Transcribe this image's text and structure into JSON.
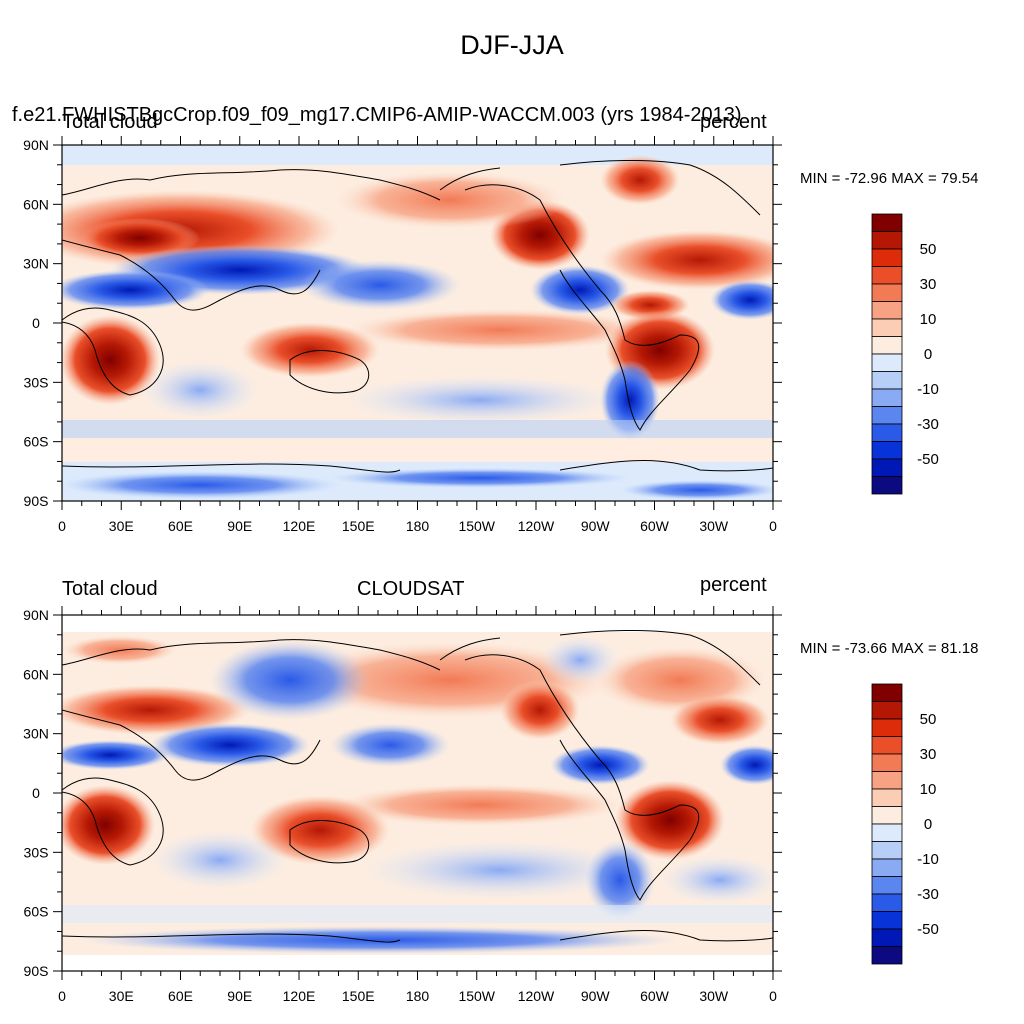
{
  "title": "DJF-JJA",
  "colorbar": {
    "colors": [
      "#0c0a80",
      "#0019b6",
      "#0833d8",
      "#2a5ae8",
      "#5b85ef",
      "#8aaaf3",
      "#b7cef7",
      "#dceafc",
      "#fdede0",
      "#fbcdb4",
      "#f7a383",
      "#f27a55",
      "#ea4f2a",
      "#dd2c0a",
      "#b41804",
      "#800000"
    ],
    "labels": [
      "-50",
      "-30",
      "-10",
      "0",
      "10",
      "30",
      "50"
    ],
    "label_after_box": [
      1,
      3,
      5,
      7,
      9,
      11,
      13
    ]
  },
  "axes": {
    "lon_labels": [
      "0",
      "30E",
      "60E",
      "90E",
      "120E",
      "150E",
      "180",
      "150W",
      "120W",
      "90W",
      "60W",
      "30W",
      "0"
    ],
    "lat_labels": [
      "90N",
      "60N",
      "30N",
      "0",
      "30S",
      "60S",
      "90S"
    ]
  },
  "panels": [
    {
      "id": "model",
      "left_title": "Total cloud",
      "center_title": "f.e21.FWHISTBgcCrop.f09_f09_mg17.CMIP6-AMIP-WACCM.003 (yrs 1984-2013)",
      "right_title": "percent",
      "min_max": "MIN = -72.96 MAX =  79.54"
    },
    {
      "id": "obs",
      "left_title": "Total cloud",
      "center_title": "CLOUDSAT",
      "right_title": "percent",
      "min_max": "MIN = -73.66 MAX =  81.18"
    }
  ]
}
